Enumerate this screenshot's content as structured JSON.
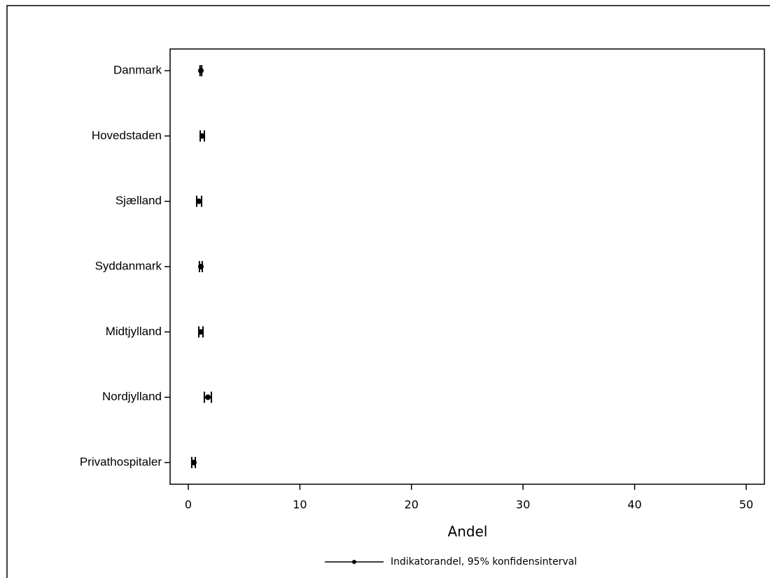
{
  "chart_data": {
    "type": "errorbar",
    "xlabel": "Andel",
    "categories": [
      "Danmark",
      "Hovedstaden",
      "Sjælland",
      "Syddanmark",
      "Midtjylland",
      "Nordjylland",
      "Privathospitaler"
    ],
    "series": [
      {
        "name": "Indikatorandel, 95% konfidensinterval",
        "color": "#000000",
        "values": [
          1.13,
          1.25,
          0.94,
          1.13,
          1.13,
          1.76,
          0.5
        ],
        "lower": [
          1.05,
          1.07,
          0.75,
          1.0,
          0.94,
          1.44,
          0.31
        ],
        "upper": [
          1.2,
          1.44,
          1.19,
          1.25,
          1.32,
          2.07,
          0.63
        ]
      }
    ],
    "xlim": [
      -1.63,
      51.63
    ],
    "xticks": [
      0,
      10,
      20,
      30,
      40,
      50
    ],
    "grid": false,
    "legend": "bottom"
  }
}
